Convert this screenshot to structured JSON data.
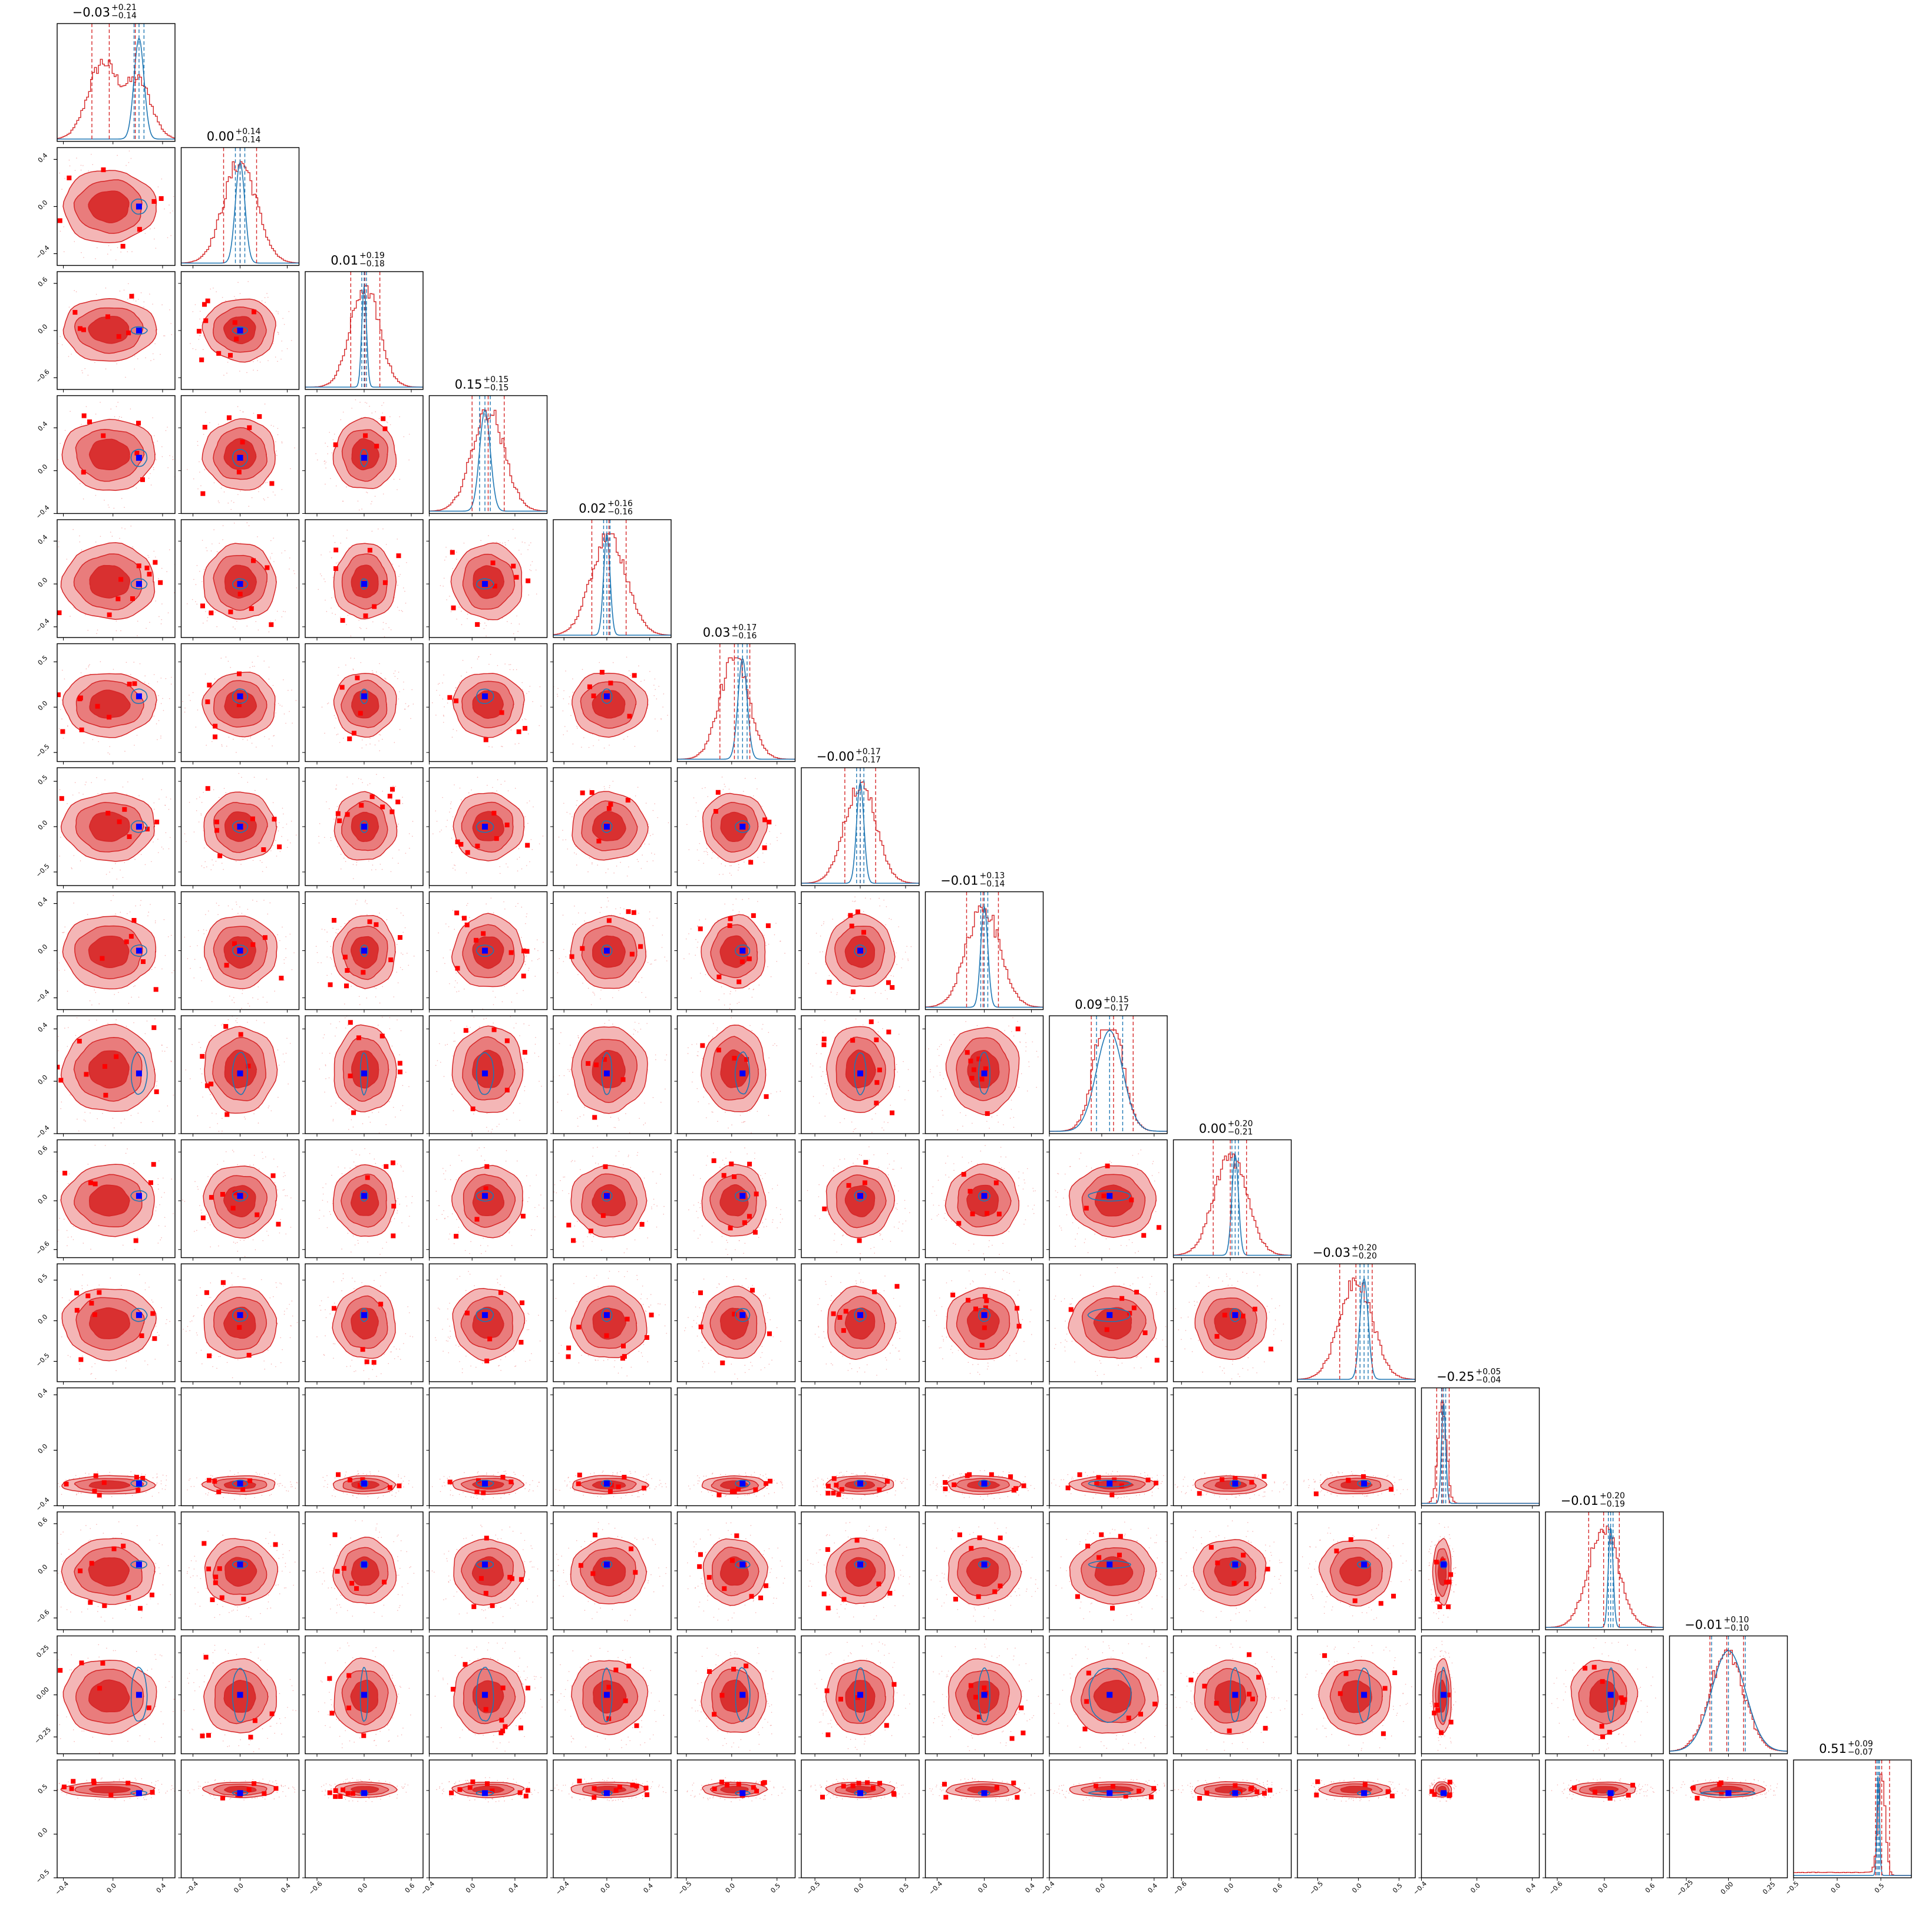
{
  "chart_data": {
    "type": "corner",
    "n_params": 15,
    "colors": {
      "posterior_a": "#d62728",
      "posterior_a_fill_light": "#f4b6b6",
      "posterior_a_fill_mid": "#e97c7c",
      "posterior_a_fill_dark": "#d93030",
      "posterior_b": "#1f77b4",
      "truth_marker": "#0000ff",
      "outlier_marker": "#ff0000"
    },
    "parameters": [
      {
        "title_center": "−0.03",
        "title_plus": "+0.21",
        "title_minus": "−0.14",
        "mean": -0.03,
        "err_plus": 0.21,
        "err_minus": 0.14,
        "range": [
          -0.45,
          0.5
        ],
        "ticks": [
          -0.4,
          0.0,
          0.4
        ],
        "tick_labels": [
          "-0.4",
          "0.0",
          "0.4"
        ],
        "b_mean": 0.21,
        "b_sigma": 0.04,
        "a_scale": 0.17,
        "bimodal": true
      },
      {
        "title_center": "0.00",
        "title_plus": "+0.14",
        "title_minus": "−0.14",
        "mean": 0.0,
        "err_plus": 0.14,
        "err_minus": 0.14,
        "range": [
          -0.5,
          0.5
        ],
        "ticks": [
          -0.4,
          0.0,
          0.4
        ],
        "tick_labels": [
          "-0.4",
          "0.0",
          "0.4"
        ],
        "b_mean": 0.0,
        "b_sigma": 0.04,
        "a_scale": 0.14
      },
      {
        "title_center": "0.01",
        "title_plus": "+0.19",
        "title_minus": "−0.18",
        "mean": 0.01,
        "err_plus": 0.19,
        "err_minus": 0.18,
        "range": [
          -0.75,
          0.75
        ],
        "ticks": [
          -0.6,
          0.0,
          0.6
        ],
        "tick_labels": [
          "-0.6",
          "0.0",
          "0.6"
        ],
        "b_mean": 0.0,
        "b_sigma": 0.03,
        "a_scale": 0.18
      },
      {
        "title_center": "0.15",
        "title_plus": "+0.15",
        "title_minus": "−0.15",
        "mean": 0.15,
        "err_plus": 0.15,
        "err_minus": 0.15,
        "range": [
          -0.4,
          0.7
        ],
        "ticks": [
          -0.4,
          0.0,
          0.4
        ],
        "tick_labels": [
          "-0.4",
          "0.0",
          "0.4"
        ],
        "b_mean": 0.12,
        "b_sigma": 0.05,
        "a_scale": 0.15
      },
      {
        "title_center": "0.02",
        "title_plus": "+0.16",
        "title_minus": "−0.16",
        "mean": 0.02,
        "err_plus": 0.16,
        "err_minus": 0.16,
        "range": [
          -0.5,
          0.6
        ],
        "ticks": [
          -0.4,
          0.0,
          0.4
        ],
        "tick_labels": [
          "-0.4",
          "0.0",
          "0.4"
        ],
        "b_mean": 0.0,
        "b_sigma": 0.03,
        "a_scale": 0.16
      },
      {
        "title_center": "0.03",
        "title_plus": "+0.17",
        "title_minus": "−0.16",
        "mean": 0.03,
        "err_plus": 0.17,
        "err_minus": 0.16,
        "range": [
          -0.6,
          0.7
        ],
        "ticks": [
          -0.5,
          0.0,
          0.5
        ],
        "tick_labels": [
          "-0.5",
          "0.0",
          "0.5"
        ],
        "b_mean": 0.12,
        "b_sigma": 0.05,
        "a_scale": 0.16
      },
      {
        "title_center": "−0.00",
        "title_plus": "+0.17",
        "title_minus": "−0.17",
        "mean": 0.0,
        "err_plus": 0.17,
        "err_minus": 0.17,
        "range": [
          -0.65,
          0.65
        ],
        "ticks": [
          -0.5,
          0.0,
          0.5
        ],
        "tick_labels": [
          "-0.5",
          "0.0",
          "0.5"
        ],
        "b_mean": 0.0,
        "b_sigma": 0.04,
        "a_scale": 0.17
      },
      {
        "title_center": "−0.01",
        "title_plus": "+0.13",
        "title_minus": "−0.14",
        "mean": -0.01,
        "err_plus": 0.13,
        "err_minus": 0.14,
        "range": [
          -0.5,
          0.5
        ],
        "ticks": [
          -0.4,
          0.0,
          0.4
        ],
        "tick_labels": [
          "-0.4",
          "0.0",
          "0.4"
        ],
        "b_mean": 0.0,
        "b_sigma": 0.03,
        "a_scale": 0.14
      },
      {
        "title_center": "0.09",
        "title_plus": "+0.15",
        "title_minus": "−0.17",
        "mean": 0.09,
        "err_plus": 0.15,
        "err_minus": 0.17,
        "range": [
          -0.4,
          0.5
        ],
        "ticks": [
          -0.4,
          0.0,
          0.4
        ],
        "tick_labels": [
          "-0.4",
          "0.0",
          "0.4"
        ],
        "b_mean": 0.06,
        "b_sigma": 0.1,
        "a_scale": 0.15,
        "bimodal": true
      },
      {
        "title_center": "0.00",
        "title_plus": "+0.20",
        "title_minus": "−0.21",
        "mean": 0.0,
        "err_plus": 0.2,
        "err_minus": 0.21,
        "range": [
          -0.7,
          0.75
        ],
        "ticks": [
          -0.6,
          0.0,
          0.6
        ],
        "tick_labels": [
          "-0.6",
          "0.0",
          "0.6"
        ],
        "b_mean": 0.06,
        "b_sigma": 0.04,
        "a_scale": 0.2
      },
      {
        "title_center": "−0.03",
        "title_plus": "+0.20",
        "title_minus": "−0.20",
        "mean": -0.03,
        "err_plus": 0.2,
        "err_minus": 0.2,
        "range": [
          -0.75,
          0.7
        ],
        "ticks": [
          -0.5,
          0.0,
          0.5
        ],
        "tick_labels": [
          "-0.5",
          "0.0",
          "0.5"
        ],
        "b_mean": 0.07,
        "b_sigma": 0.05,
        "a_scale": 0.2
      },
      {
        "title_center": "−0.25",
        "title_plus": "+0.05",
        "title_minus": "−0.04",
        "mean": -0.25,
        "err_plus": 0.05,
        "err_minus": 0.04,
        "range": [
          -0.4,
          0.45
        ],
        "ticks": [
          -0.4,
          0.0,
          0.4
        ],
        "tick_labels": [
          "-0.4",
          "0.0",
          "0.4"
        ],
        "b_mean": -0.24,
        "b_sigma": 0.015,
        "a_scale": 0.03
      },
      {
        "title_center": "−0.01",
        "title_plus": "+0.20",
        "title_minus": "−0.19",
        "mean": -0.01,
        "err_plus": 0.2,
        "err_minus": 0.19,
        "range": [
          -0.75,
          0.75
        ],
        "ticks": [
          -0.6,
          0.0,
          0.6
        ],
        "tick_labels": [
          "-0.6",
          "0.0",
          "0.6"
        ],
        "b_mean": 0.08,
        "b_sigma": 0.03,
        "a_scale": 0.19
      },
      {
        "title_center": "−0.01",
        "title_plus": "+0.10",
        "title_minus": "−0.10",
        "mean": -0.01,
        "err_plus": 0.1,
        "err_minus": 0.1,
        "range": [
          -0.35,
          0.35
        ],
        "ticks": [
          -0.25,
          0.0,
          0.25
        ],
        "tick_labels": [
          "-0.25",
          "0.00",
          "0.25"
        ],
        "b_mean": 0.0,
        "b_sigma": 0.1,
        "a_scale": 0.1
      },
      {
        "title_center": "0.51",
        "title_plus": "+0.09",
        "title_minus": "−0.07",
        "mean": 0.51,
        "err_plus": 0.09,
        "err_minus": 0.07,
        "range": [
          -0.5,
          0.85
        ],
        "ticks": [
          -0.5,
          0.0,
          0.5
        ],
        "tick_labels": [
          "-0.5",
          "0.0",
          "0.5"
        ],
        "b_mean": 0.47,
        "b_sigma": 0.015,
        "a_scale": 0.04,
        "tail_low": true
      }
    ]
  }
}
